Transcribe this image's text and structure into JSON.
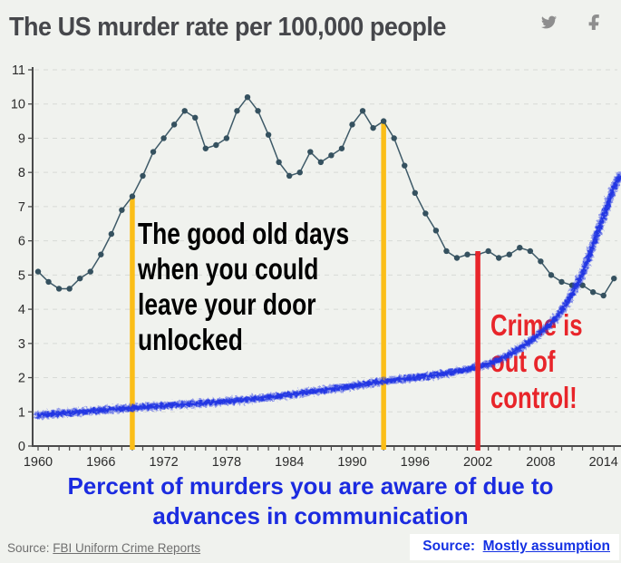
{
  "header": {
    "title": "The US murder rate per 100,000 people",
    "icons": {
      "share_twitter": "twitter-bird",
      "share_facebook": "facebook-f"
    }
  },
  "colors": {
    "background": "#f0f2ee",
    "axis": "#4a4a4a",
    "grid": "#d7dad6",
    "murder_line": "#3E5A68",
    "murder_dot": "#35515F",
    "scribble_blue": "#2135E3",
    "marker_yellow": "#FBBE18",
    "marker_red": "#E8252A",
    "caption_blue": "#1B2BE0",
    "source_blue": "#1431E3",
    "source_gray": "#6f6f6f",
    "title_gray": "#46474b",
    "icon_gray": "#8e8e8e"
  },
  "chart_data": {
    "type": "line",
    "title": "The US murder rate per 100,000 people",
    "xlabel": "",
    "ylabel": "",
    "xlim": [
      1959.5,
      2015.7
    ],
    "ylim": [
      0,
      11
    ],
    "grid": "dashed-horizontal",
    "x_ticks": [
      1960,
      1966,
      1972,
      1978,
      1984,
      1990,
      1996,
      2002,
      2008,
      2014
    ],
    "y_ticks": [
      0,
      1,
      2,
      3,
      4,
      5,
      6,
      7,
      8,
      9,
      10,
      11
    ],
    "series": [
      {
        "name": "US murder rate per 100,000 people",
        "style": "line-with-markers",
        "color": "#3E5A68",
        "dot_color": "#35515F",
        "x_start": 1960,
        "values": [
          5.1,
          4.8,
          4.6,
          4.6,
          4.9,
          5.1,
          5.6,
          6.2,
          6.9,
          7.3,
          7.9,
          8.6,
          9.0,
          9.4,
          9.8,
          9.6,
          8.7,
          8.8,
          9.0,
          9.8,
          10.2,
          9.8,
          9.1,
          8.3,
          7.9,
          8.0,
          8.6,
          8.3,
          8.5,
          8.7,
          9.4,
          9.8,
          9.3,
          9.5,
          9.0,
          8.2,
          7.4,
          6.8,
          6.3,
          5.7,
          5.5,
          5.6,
          5.6,
          5.7,
          5.5,
          5.6,
          5.8,
          5.7,
          5.4,
          5.0,
          4.8,
          4.7,
          4.7,
          4.5,
          4.4,
          4.9
        ]
      },
      {
        "name": "Percent of murders you are aware of due to advances in communication",
        "style": "thick-crayon-scribble",
        "color": "#2135E3",
        "x": [
          1960,
          1964,
          1969,
          1974,
          1978,
          1982,
          1986,
          1990,
          1993,
          1996,
          1999,
          2002,
          2004,
          2006,
          2008,
          2010,
          2012,
          2013,
          2014,
          2015,
          2015.6
        ],
        "values": [
          0.9,
          1.0,
          1.12,
          1.22,
          1.3,
          1.42,
          1.58,
          1.75,
          1.9,
          2.0,
          2.12,
          2.3,
          2.5,
          2.85,
          3.3,
          3.9,
          5.0,
          5.9,
          6.7,
          7.6,
          7.9
        ]
      }
    ],
    "markers": [
      {
        "year": 1969,
        "color": "#FBBE18",
        "from": 0,
        "to": 7.25,
        "z": "back"
      },
      {
        "year": 1993,
        "color": "#FBBE18",
        "from": 0,
        "to": 9.5,
        "z": "back"
      },
      {
        "year": 2002,
        "color": "#E8252A",
        "from": 0,
        "to": 5.7,
        "z": "front"
      }
    ],
    "annotations": {
      "good_old_days": {
        "text": "The good old days\nwhen you could\nleave your door\nunlocked",
        "color": "#000000"
      },
      "crime": {
        "text": "Crime is\nout of\ncontrol!",
        "color": "#E8252A"
      }
    }
  },
  "caption": {
    "text": "Percent of murders you are aware of due to\nadvances in communication"
  },
  "footer": {
    "left_label": "Source:",
    "left_link": "FBI Uniform Crime Reports",
    "right_label": "Source:",
    "right_link": "Mostly assumption"
  }
}
